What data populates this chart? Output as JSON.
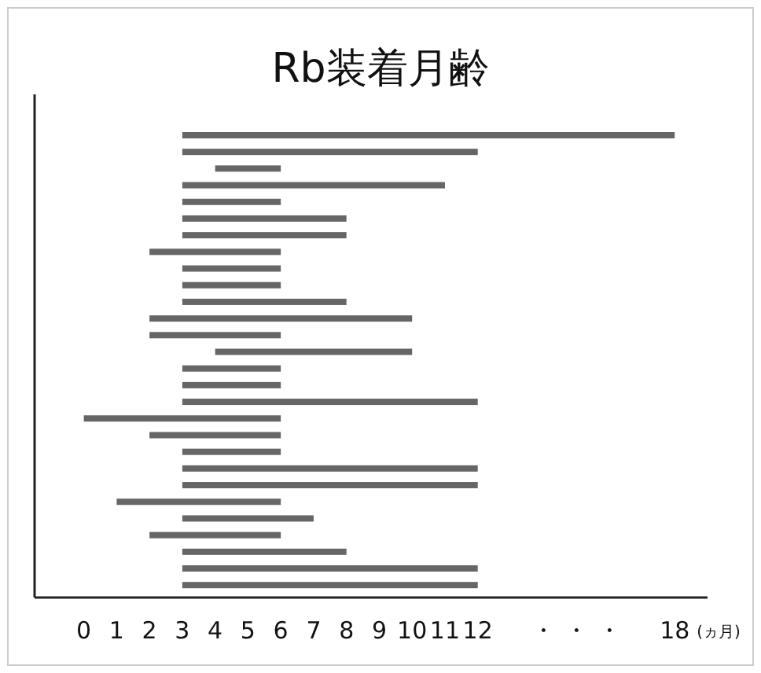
{
  "chart_data": {
    "type": "bar",
    "orientation": "horizontal",
    "title": "Rb装着月齢",
    "xlabel": "(ヵ月)",
    "categories": [
      null,
      null,
      null,
      null,
      null,
      null,
      null,
      null,
      null,
      null,
      null,
      null,
      null,
      null,
      null,
      null,
      null,
      null,
      null,
      null,
      null,
      null,
      null,
      null,
      null,
      null,
      null,
      null
    ],
    "base": [
      3,
      3,
      4,
      3,
      3,
      3,
      3,
      2,
      3,
      3,
      3,
      2,
      2,
      4,
      3,
      3,
      3,
      0,
      2,
      3,
      3,
      3,
      1,
      3,
      2,
      3,
      3,
      3
    ],
    "values": [
      15,
      9,
      2,
      8,
      3,
      5,
      5,
      4,
      3,
      3,
      5,
      8,
      4,
      6,
      3,
      3,
      9,
      6,
      4,
      3,
      9,
      9,
      5,
      4,
      4,
      5,
      9,
      9
    ],
    "color": "#666666",
    "xlim": [
      -1.5,
      19
    ],
    "xticks": [
      0,
      1,
      2,
      3,
      4,
      5,
      6,
      7,
      8,
      9,
      10,
      11,
      12,
      {
        "value": 14,
        "label": "・"
      },
      {
        "value": 15,
        "label": "・"
      },
      {
        "value": 16,
        "label": "・"
      },
      18
    ],
    "tick_labels": "x"
  }
}
